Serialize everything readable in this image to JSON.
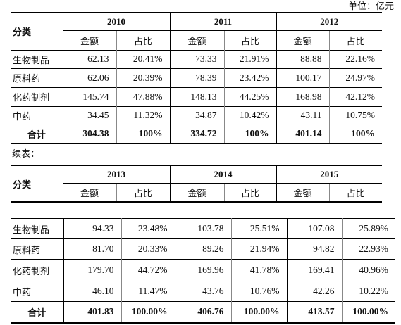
{
  "unit_label": "单位：亿元",
  "continuation_label": "续表：",
  "table1": {
    "category_header": "分类",
    "years": [
      "2010",
      "2011",
      "2012"
    ],
    "sub_headers": [
      "金额",
      "占比"
    ],
    "rows": [
      {
        "category": "生物制品",
        "cells": [
          "62.13",
          "20.41%",
          "73.33",
          "21.91%",
          "88.88",
          "22.16%"
        ]
      },
      {
        "category": "原料药",
        "cells": [
          "62.06",
          "20.39%",
          "78.39",
          "23.42%",
          "100.17",
          "24.97%"
        ]
      },
      {
        "category": "化药制剂",
        "cells": [
          "145.74",
          "47.88%",
          "148.13",
          "44.25%",
          "168.98",
          "42.12%"
        ]
      },
      {
        "category": "中药",
        "cells": [
          "34.45",
          "11.32%",
          "34.87",
          "10.42%",
          "43.11",
          "10.75%"
        ]
      }
    ],
    "total": {
      "category": "合计",
      "cells": [
        "304.38",
        "100%",
        "334.72",
        "100%",
        "401.14",
        "100%"
      ]
    }
  },
  "table2": {
    "category_header": "分类",
    "years": [
      "2013",
      "2014",
      "2015"
    ],
    "sub_headers": [
      "金额",
      "占比"
    ],
    "rows": [
      {
        "category": "生物制品",
        "cells": [
          "94.33",
          "23.48%",
          "103.78",
          "25.51%",
          "107.08",
          "25.89%"
        ]
      },
      {
        "category": "原料药",
        "cells": [
          "81.70",
          "20.33%",
          "89.26",
          "21.94%",
          "94.82",
          "22.93%"
        ]
      },
      {
        "category": "化药制剂",
        "cells": [
          "179.70",
          "44.72%",
          "169.96",
          "41.78%",
          "169.41",
          "40.96%"
        ]
      },
      {
        "category": "中药",
        "cells": [
          "46.10",
          "11.47%",
          "43.76",
          "10.76%",
          "42.26",
          "10.22%"
        ]
      }
    ],
    "total": {
      "category": "合计",
      "cells": [
        "401.83",
        "100.00%",
        "406.76",
        "100.00%",
        "413.57",
        "100.00%"
      ]
    }
  }
}
